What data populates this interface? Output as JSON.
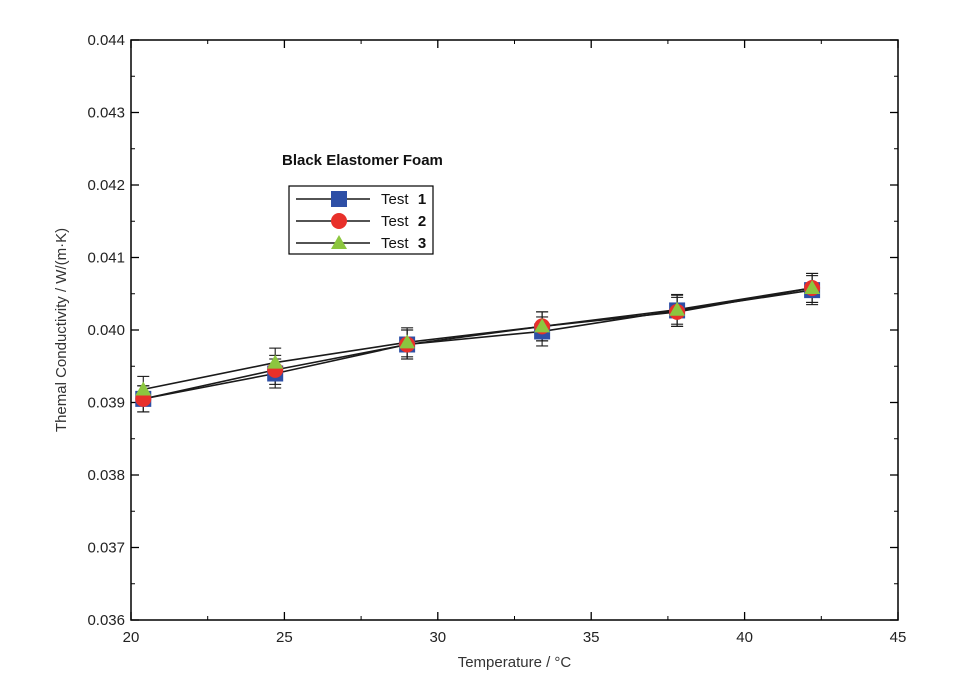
{
  "chart_data": {
    "type": "line",
    "title": "",
    "xlabel": "Temperature / °C",
    "ylabel": "Themal Conductivity / W/(m·K)",
    "xlim": [
      20,
      45
    ],
    "ylim": [
      0.036,
      0.044
    ],
    "xticks": [
      "20",
      "25",
      "30",
      "35",
      "40",
      "45"
    ],
    "yticks": [
      "0.036",
      "0.037",
      "0.038",
      "0.039",
      "0.040",
      "0.041",
      "0.042",
      "0.043",
      "0.044"
    ],
    "grid": false,
    "error_bars": true,
    "legend": {
      "title": "Black Elastomer Foam",
      "placement": "upper-left",
      "entries": [
        {
          "prefix": "Test",
          "number": "1"
        },
        {
          "prefix": "Test",
          "number": "2"
        },
        {
          "prefix": "Test",
          "number": "3"
        }
      ]
    },
    "series": [
      {
        "name": "Test 1",
        "marker": "square",
        "color": "#2e4fa6",
        "x": [
          20.4,
          24.7,
          29.0,
          33.4,
          37.8,
          42.2
        ],
        "y": [
          0.03905,
          0.0394,
          0.0398,
          0.03998,
          0.04027,
          0.04055
        ],
        "err": [
          0.00018,
          0.0002,
          0.0002,
          0.0002,
          0.00022,
          0.0002
        ]
      },
      {
        "name": "Test 2",
        "marker": "circle",
        "color": "#e8302a",
        "x": [
          20.4,
          24.7,
          29.0,
          33.4,
          37.8,
          42.2
        ],
        "y": [
          0.03905,
          0.03945,
          0.0398,
          0.04005,
          0.04025,
          0.04058
        ],
        "err": [
          0.00018,
          0.0002,
          0.0002,
          0.0002,
          0.0002,
          0.0002
        ]
      },
      {
        "name": "Test 3",
        "marker": "triangle",
        "color": "#8cc63f",
        "x": [
          20.4,
          24.7,
          29.0,
          33.4,
          37.8,
          42.2
        ],
        "y": [
          0.03918,
          0.03955,
          0.03983,
          0.04005,
          0.04028,
          0.04058
        ],
        "err": [
          0.00018,
          0.0002,
          0.0002,
          0.0002,
          0.0002,
          0.0002
        ]
      }
    ]
  }
}
